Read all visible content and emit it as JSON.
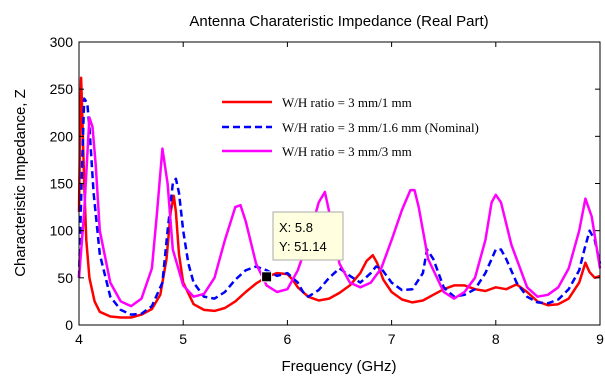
{
  "chart_data": {
    "type": "line",
    "title": "Antenna Charateristic Impedance (Real Part)",
    "xlabel": "Frequency (GHz)",
    "ylabel": "Characteristic Impedance, Z",
    "xlim": [
      4,
      9
    ],
    "ylim": [
      0,
      300
    ],
    "xticks": [
      "4",
      "5",
      "6",
      "7",
      "8",
      "9"
    ],
    "yticks": [
      "0",
      "50",
      "100",
      "150",
      "200",
      "250",
      "300"
    ],
    "grid": false,
    "legend_position": "upper-middle",
    "series": [
      {
        "name": "W/H ratio = 3 mm/1 mm",
        "color": "#ff0000",
        "dash": "solid",
        "x": [
          4.0,
          4.01,
          4.02,
          4.03,
          4.05,
          4.07,
          4.1,
          4.15,
          4.2,
          4.3,
          4.4,
          4.5,
          4.6,
          4.7,
          4.78,
          4.84,
          4.88,
          4.91,
          4.93,
          4.96,
          5.0,
          5.1,
          5.2,
          5.3,
          5.4,
          5.5,
          5.6,
          5.7,
          5.8,
          5.9,
          6.0,
          6.05,
          6.1,
          6.2,
          6.3,
          6.4,
          6.5,
          6.6,
          6.7,
          6.76,
          6.82,
          6.86,
          6.92,
          7.0,
          7.1,
          7.2,
          7.3,
          7.4,
          7.5,
          7.6,
          7.7,
          7.8,
          7.9,
          8.0,
          8.1,
          8.2,
          8.3,
          8.4,
          8.5,
          8.6,
          8.7,
          8.8,
          8.86,
          8.9,
          8.95,
          9.0
        ],
        "y": [
          120,
          200,
          262,
          230,
          150,
          90,
          50,
          25,
          14,
          9,
          8,
          8,
          11,
          17,
          32,
          70,
          120,
          137,
          120,
          75,
          45,
          22,
          16,
          15,
          18,
          25,
          35,
          44,
          51,
          55,
          54,
          48,
          40,
          30,
          26,
          28,
          34,
          42,
          55,
          68,
          74,
          66,
          48,
          35,
          27,
          24,
          26,
          32,
          38,
          42,
          42,
          38,
          36,
          40,
          38,
          43,
          35,
          25,
          21,
          22,
          28,
          45,
          66,
          56,
          50,
          52
        ]
      },
      {
        "name": "W/H ratio = 3 mm/1.6 mm (Nominal)",
        "color": "#0000ff",
        "dash": "dashed",
        "x": [
          4.0,
          4.03,
          4.05,
          4.08,
          4.1,
          4.14,
          4.2,
          4.3,
          4.4,
          4.5,
          4.6,
          4.7,
          4.8,
          4.85,
          4.9,
          4.93,
          4.96,
          5.0,
          5.05,
          5.1,
          5.2,
          5.3,
          5.4,
          5.5,
          5.6,
          5.7,
          5.8,
          5.9,
          6.0,
          6.1,
          6.15,
          6.2,
          6.3,
          6.4,
          6.5,
          6.6,
          6.7,
          6.8,
          6.85,
          6.9,
          7.0,
          7.1,
          7.2,
          7.3,
          7.34,
          7.4,
          7.5,
          7.6,
          7.7,
          7.8,
          7.9,
          8.0,
          8.05,
          8.1,
          8.2,
          8.3,
          8.4,
          8.5,
          8.6,
          8.7,
          8.8,
          8.85,
          8.9,
          8.95,
          9.0
        ],
        "y": [
          50,
          170,
          240,
          235,
          210,
          140,
          75,
          30,
          16,
          11,
          12,
          20,
          45,
          100,
          150,
          155,
          140,
          100,
          65,
          45,
          30,
          28,
          35,
          48,
          58,
          62,
          58,
          52,
          55,
          45,
          35,
          30,
          37,
          50,
          60,
          52,
          45,
          55,
          62,
          60,
          45,
          37,
          38,
          55,
          80,
          70,
          40,
          30,
          32,
          38,
          55,
          80,
          80,
          70,
          45,
          30,
          24,
          23,
          27,
          38,
          58,
          80,
          100,
          90,
          65
        ]
      },
      {
        "name": "W/H ratio = 3 mm/3 mm",
        "color": "#ff00ff",
        "dash": "solid",
        "x": [
          4.0,
          4.05,
          4.1,
          4.13,
          4.16,
          4.2,
          4.3,
          4.4,
          4.5,
          4.6,
          4.7,
          4.75,
          4.8,
          4.85,
          4.9,
          5.0,
          5.1,
          5.2,
          5.3,
          5.4,
          5.5,
          5.55,
          5.6,
          5.7,
          5.8,
          5.9,
          6.0,
          6.1,
          6.2,
          6.3,
          6.36,
          6.42,
          6.5,
          6.6,
          6.7,
          6.8,
          6.9,
          7.0,
          7.1,
          7.18,
          7.22,
          7.26,
          7.35,
          7.5,
          7.6,
          7.7,
          7.8,
          7.9,
          7.96,
          8.0,
          8.05,
          8.15,
          8.3,
          8.4,
          8.5,
          8.6,
          8.7,
          8.8,
          8.86,
          8.92,
          9.0
        ],
        "y": [
          50,
          120,
          220,
          210,
          170,
          100,
          45,
          25,
          20,
          28,
          60,
          120,
          187,
          150,
          80,
          42,
          30,
          33,
          50,
          90,
          125,
          127,
          110,
          65,
          42,
          35,
          38,
          58,
          90,
          130,
          141,
          110,
          65,
          45,
          40,
          45,
          60,
          90,
          122,
          143,
          143,
          125,
          70,
          35,
          28,
          35,
          50,
          90,
          130,
          138,
          130,
          85,
          40,
          30,
          32,
          40,
          60,
          100,
          134,
          115,
          60
        ]
      }
    ],
    "annotation": {
      "x_text": "X: 5.8",
      "y_text": "Y: 51.14",
      "x": 5.8,
      "y": 51.14
    }
  }
}
